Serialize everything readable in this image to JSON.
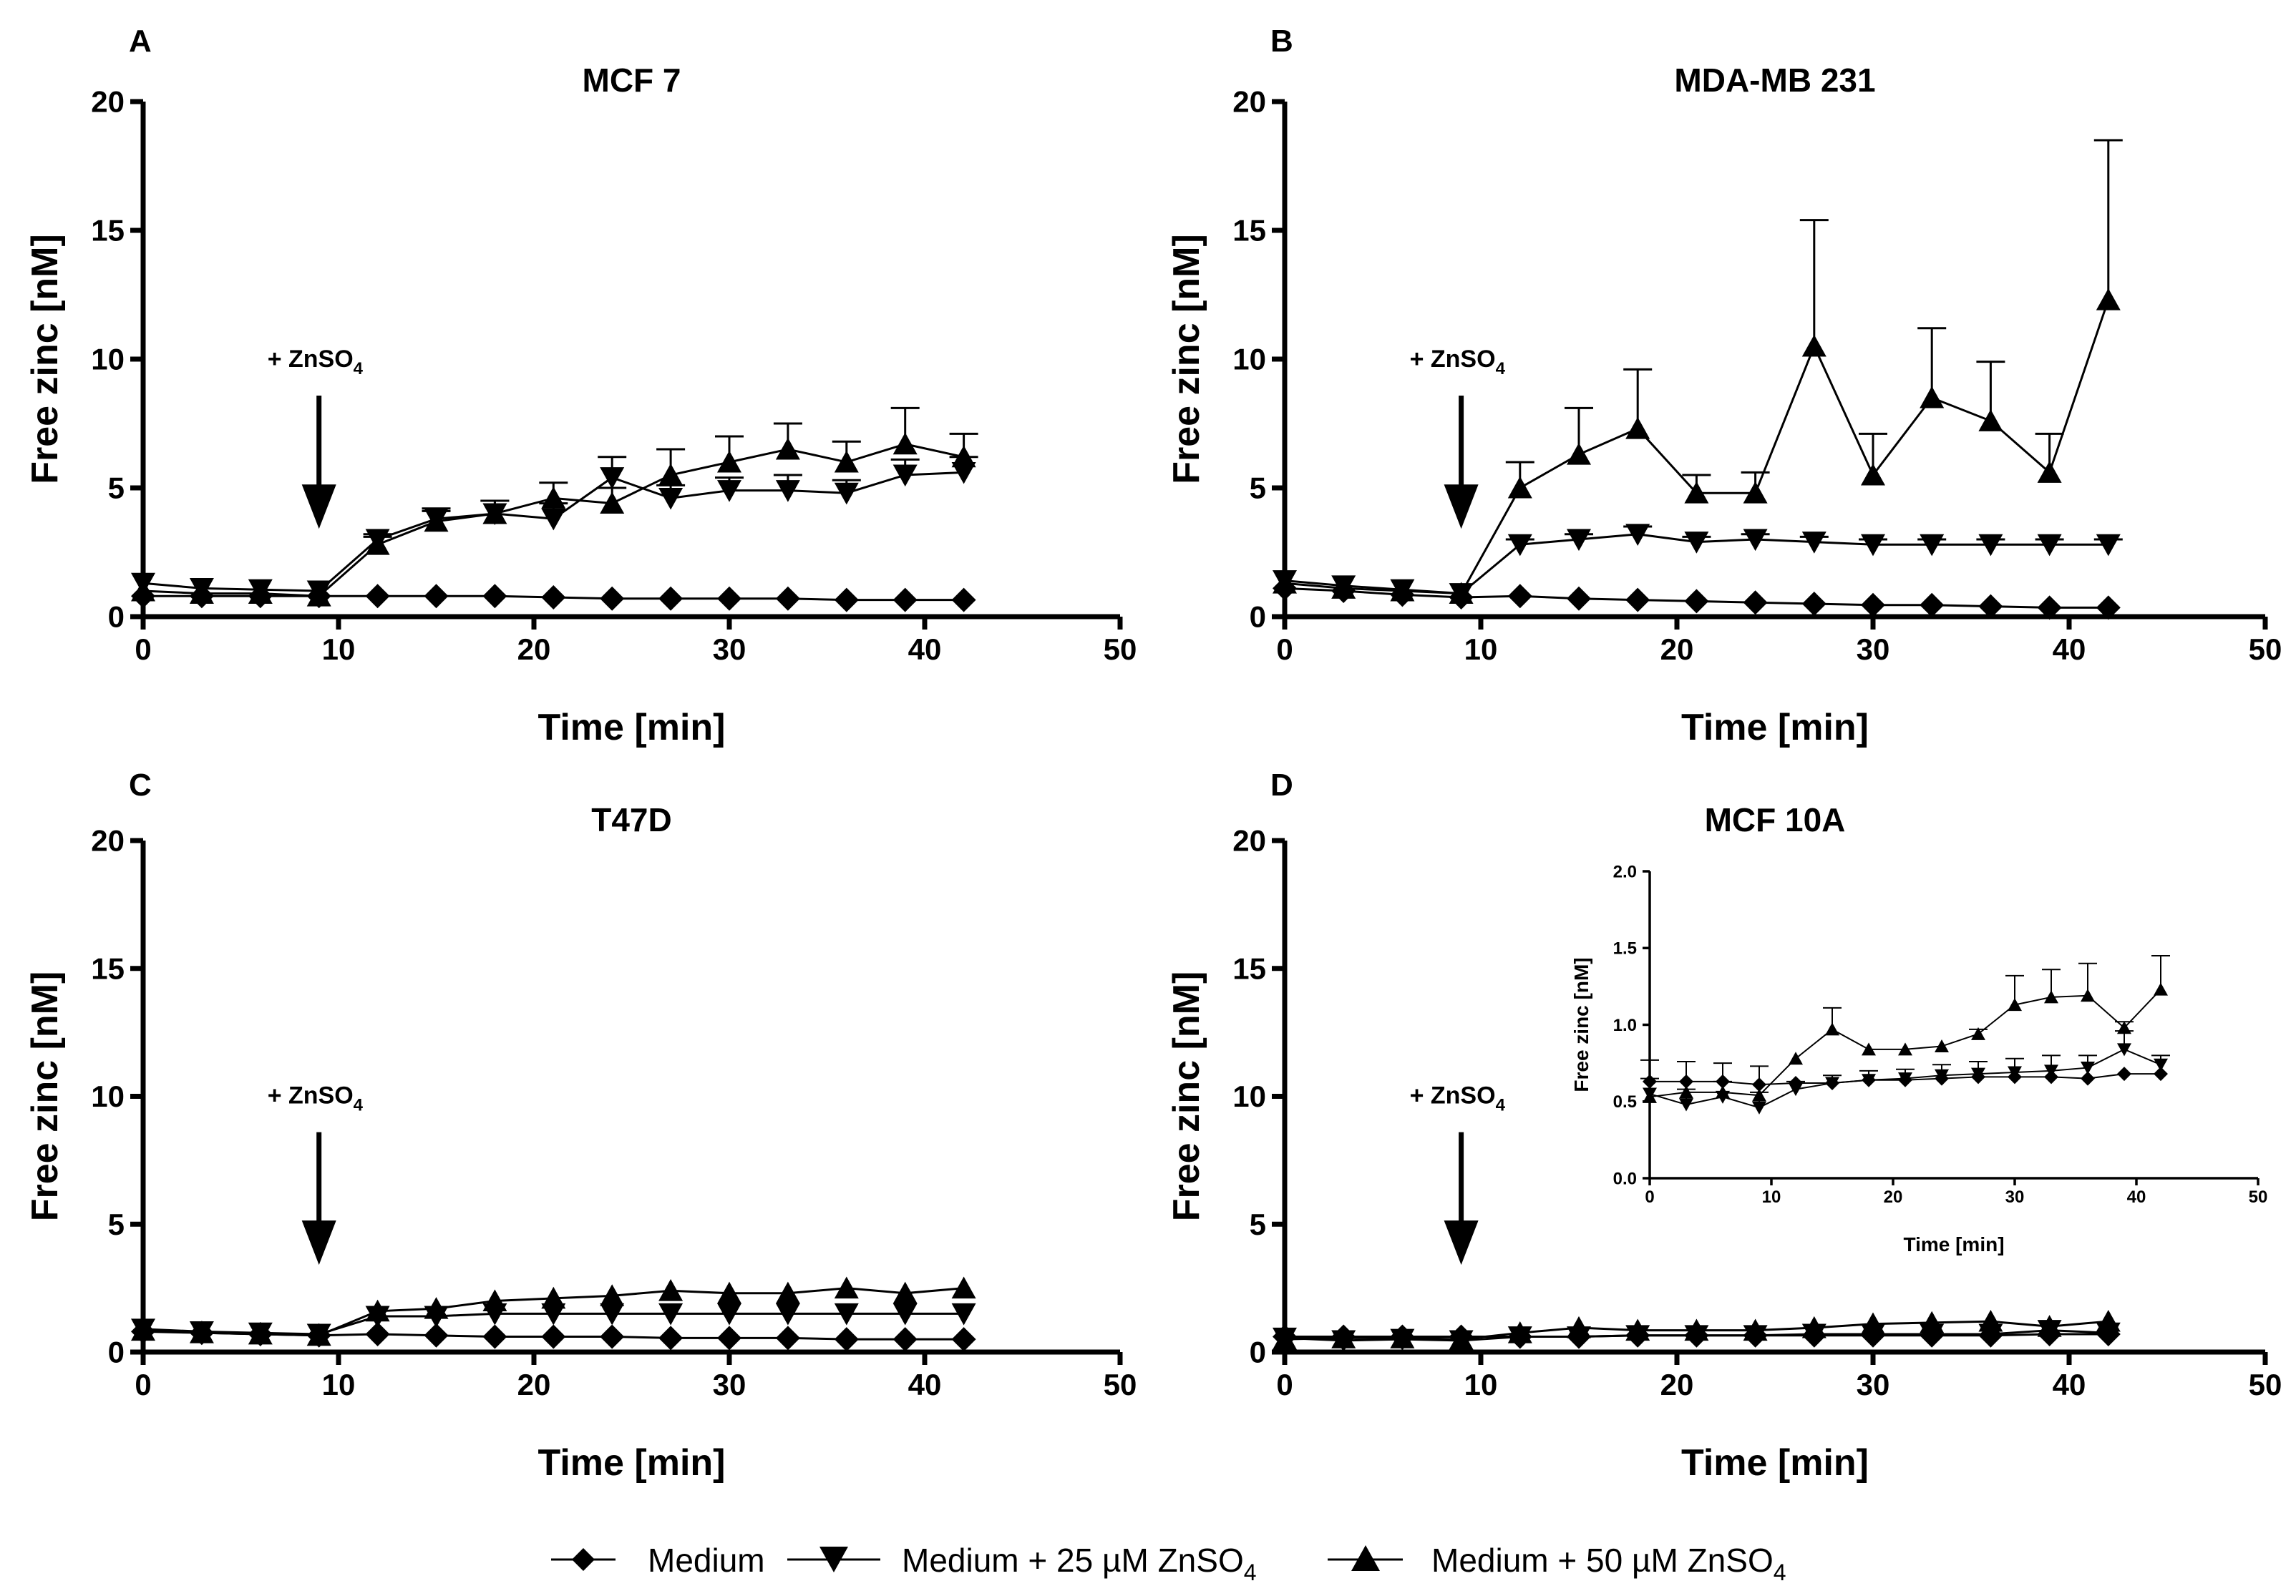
{
  "figure": {
    "annotation_text": "+ ZnSO",
    "annotation_sub": "4"
  },
  "legend": {
    "items": [
      {
        "label": "Medium",
        "sub": "",
        "marker": "diamond"
      },
      {
        "label": "Medium + 25 µM ZnSO",
        "sub": "4",
        "marker": "triangle-down"
      },
      {
        "label": "Medium + 50 µM ZnSO",
        "sub": "4",
        "marker": "triangle-up"
      }
    ]
  },
  "chart_data": [
    {
      "type": "line",
      "letter": "A",
      "title": "MCF 7",
      "xlabel": "Time [min]",
      "ylabel": "Free zinc [nM]",
      "xlim": [
        0,
        50
      ],
      "ylim": [
        0,
        20
      ],
      "xticks": [
        0,
        10,
        20,
        30,
        40,
        50
      ],
      "yticks": [
        0,
        5,
        10,
        15,
        20
      ],
      "x": [
        0,
        3,
        6,
        9,
        12,
        15,
        18,
        21,
        24,
        27,
        30,
        33,
        36,
        39,
        42
      ],
      "arrow_x": 9,
      "series": [
        {
          "name": "Medium",
          "marker": "diamond",
          "values": [
            0.8,
            0.8,
            0.8,
            0.8,
            0.8,
            0.8,
            0.8,
            0.75,
            0.7,
            0.7,
            0.7,
            0.7,
            0.65,
            0.65,
            0.65
          ],
          "errors": [
            0,
            0,
            0,
            0,
            0,
            0,
            0,
            0,
            0,
            0,
            0,
            0,
            0,
            0,
            0
          ]
        },
        {
          "name": "Medium + 25 µM ZnSO4",
          "marker": "triangle-down",
          "values": [
            1.3,
            1.1,
            1.05,
            1.0,
            3.0,
            3.8,
            4.0,
            3.8,
            5.4,
            4.6,
            4.9,
            4.9,
            4.8,
            5.5,
            5.6
          ],
          "errors": [
            0,
            0,
            0,
            0,
            0.2,
            0.4,
            0.5,
            0.6,
            0.8,
            0.5,
            0.5,
            0.6,
            0.5,
            0.6,
            0.6
          ]
        },
        {
          "name": "Medium + 50 µM ZnSO4",
          "marker": "triangle-up",
          "values": [
            1.0,
            0.9,
            0.9,
            0.8,
            2.8,
            3.7,
            4.0,
            4.6,
            4.4,
            5.5,
            6.0,
            6.5,
            6.0,
            6.7,
            6.2
          ],
          "errors": [
            0,
            0,
            0,
            0,
            0.3,
            0.4,
            0.5,
            0.6,
            0.6,
            1.0,
            1.0,
            1.0,
            0.8,
            1.4,
            0.9
          ]
        }
      ]
    },
    {
      "type": "line",
      "letter": "B",
      "title": "MDA-MB 231",
      "xlabel": "Time [min]",
      "ylabel": "Free zinc [nM]",
      "xlim": [
        0,
        50
      ],
      "ylim": [
        0,
        20
      ],
      "xticks": [
        0,
        10,
        20,
        30,
        40,
        50
      ],
      "yticks": [
        0,
        5,
        10,
        15,
        20
      ],
      "x": [
        0,
        3,
        6,
        9,
        12,
        15,
        18,
        21,
        24,
        27,
        30,
        33,
        36,
        39,
        42
      ],
      "arrow_x": 9,
      "series": [
        {
          "name": "Medium",
          "marker": "diamond",
          "values": [
            1.1,
            1.0,
            0.85,
            0.75,
            0.8,
            0.7,
            0.65,
            0.6,
            0.55,
            0.5,
            0.45,
            0.45,
            0.4,
            0.35,
            0.35
          ],
          "errors": [
            0,
            0,
            0,
            0,
            0,
            0,
            0,
            0,
            0,
            0,
            0,
            0,
            0,
            0,
            0
          ]
        },
        {
          "name": "Medium + 25 µM ZnSO4",
          "marker": "triangle-down",
          "values": [
            1.4,
            1.2,
            1.05,
            0.9,
            2.8,
            3.0,
            3.2,
            2.9,
            3.0,
            2.9,
            2.8,
            2.8,
            2.8,
            2.8,
            2.8
          ],
          "errors": [
            0,
            0,
            0,
            0,
            0.2,
            0.2,
            0.3,
            0.2,
            0.2,
            0.2,
            0.2,
            0.2,
            0.2,
            0.2,
            0.2
          ]
        },
        {
          "name": "Medium + 50 µM ZnSO4",
          "marker": "triangle-up",
          "values": [
            1.3,
            1.1,
            1.0,
            0.9,
            5.0,
            6.3,
            7.3,
            4.8,
            4.8,
            10.5,
            5.5,
            8.5,
            7.6,
            5.6,
            12.3
          ],
          "errors": [
            0,
            0,
            0,
            0,
            1.0,
            1.8,
            2.3,
            0.7,
            0.8,
            4.9,
            1.6,
            2.7,
            2.3,
            1.5,
            6.2
          ]
        }
      ]
    },
    {
      "type": "line",
      "letter": "C",
      "title": "T47D",
      "xlabel": "Time [min]",
      "ylabel": "Free zinc [nM]",
      "xlim": [
        0,
        50
      ],
      "ylim": [
        0,
        20
      ],
      "xticks": [
        0,
        10,
        20,
        30,
        40,
        50
      ],
      "yticks": [
        0,
        5,
        10,
        15,
        20
      ],
      "x": [
        0,
        3,
        6,
        9,
        12,
        15,
        18,
        21,
        24,
        27,
        30,
        33,
        36,
        39,
        42
      ],
      "arrow_x": 9,
      "series": [
        {
          "name": "Medium",
          "marker": "diamond",
          "values": [
            0.8,
            0.75,
            0.7,
            0.65,
            0.7,
            0.65,
            0.6,
            0.6,
            0.6,
            0.55,
            0.55,
            0.55,
            0.5,
            0.5,
            0.5
          ],
          "errors": [
            0,
            0,
            0,
            0,
            0,
            0,
            0,
            0,
            0,
            0,
            0,
            0,
            0,
            0,
            0
          ]
        },
        {
          "name": "Medium + 25 µM ZnSO4",
          "marker": "triangle-down",
          "values": [
            0.9,
            0.8,
            0.75,
            0.7,
            1.4,
            1.4,
            1.5,
            1.5,
            1.5,
            1.5,
            1.5,
            1.5,
            1.5,
            1.5,
            1.5
          ],
          "errors": [
            0,
            0,
            0,
            0,
            0,
            0,
            0,
            0,
            0,
            0,
            0,
            0,
            0,
            0,
            0
          ]
        },
        {
          "name": "Medium + 50 µM ZnSO4",
          "marker": "triangle-up",
          "values": [
            0.85,
            0.75,
            0.7,
            0.65,
            1.6,
            1.7,
            2.0,
            2.1,
            2.2,
            2.4,
            2.3,
            2.3,
            2.5,
            2.3,
            2.5
          ],
          "errors": [
            0,
            0,
            0,
            0,
            0,
            0,
            0,
            0,
            0,
            0,
            0,
            0,
            0,
            0,
            0
          ]
        }
      ]
    },
    {
      "type": "line",
      "letter": "D",
      "title": "MCF 10A",
      "xlabel": "Time [min]",
      "ylabel": "Free zinc [nM]",
      "xlim": [
        0,
        50
      ],
      "ylim": [
        0,
        20
      ],
      "xticks": [
        0,
        10,
        20,
        30,
        40,
        50
      ],
      "yticks": [
        0,
        5,
        10,
        15,
        20
      ],
      "x": [
        0,
        3,
        6,
        9,
        12,
        15,
        18,
        21,
        24,
        27,
        30,
        33,
        36,
        39,
        42
      ],
      "arrow_x": 9,
      "series": [
        {
          "name": "Medium",
          "marker": "diamond",
          "values": [
            0.6,
            0.6,
            0.6,
            0.6,
            0.6,
            0.6,
            0.65,
            0.65,
            0.65,
            0.65,
            0.65,
            0.65,
            0.65,
            0.7,
            0.7
          ],
          "errors": [
            0,
            0,
            0,
            0,
            0,
            0,
            0,
            0,
            0,
            0,
            0,
            0,
            0,
            0,
            0
          ]
        },
        {
          "name": "Medium + 25 µM ZnSO4",
          "marker": "triangle-down",
          "values": [
            0.55,
            0.45,
            0.5,
            0.45,
            0.6,
            0.6,
            0.65,
            0.65,
            0.65,
            0.7,
            0.7,
            0.7,
            0.7,
            0.85,
            0.75
          ],
          "errors": [
            0,
            0,
            0,
            0,
            0,
            0,
            0,
            0,
            0,
            0,
            0,
            0,
            0,
            0,
            0
          ]
        },
        {
          "name": "Medium + 50 µM ZnSO4",
          "marker": "triangle-up",
          "values": [
            0.5,
            0.55,
            0.55,
            0.5,
            0.75,
            0.95,
            0.85,
            0.85,
            0.85,
            0.95,
            1.1,
            1.15,
            1.2,
            1.0,
            1.2
          ],
          "errors": [
            0,
            0,
            0,
            0,
            0,
            0,
            0,
            0,
            0,
            0,
            0,
            0,
            0,
            0,
            0
          ]
        }
      ],
      "inset": {
        "type": "line",
        "xlabel": "Time [min]",
        "ylabel": "Free zinc [nM]",
        "xlim": [
          0,
          50
        ],
        "ylim": [
          0,
          2.0
        ],
        "xticks": [
          0,
          10,
          20,
          30,
          40,
          50
        ],
        "yticks": [
          0.0,
          0.5,
          1.0,
          1.5,
          2.0
        ],
        "ytick_labels": [
          "0.0",
          "0.5",
          "1.0",
          "1.5",
          "2.0"
        ],
        "x": [
          0,
          3,
          6,
          9,
          12,
          15,
          18,
          21,
          24,
          27,
          30,
          33,
          36,
          39,
          42
        ],
        "series": [
          {
            "name": "Medium",
            "marker": "diamond",
            "values": [
              0.63,
              0.63,
              0.63,
              0.61,
              0.62,
              0.62,
              0.64,
              0.64,
              0.65,
              0.66,
              0.66,
              0.66,
              0.65,
              0.68,
              0.68
            ],
            "errors": [
              0.14,
              0.13,
              0.12,
              0.12,
              0,
              0,
              0,
              0,
              0,
              0,
              0,
              0,
              0,
              0,
              0
            ]
          },
          {
            "name": "Medium + 25 µM ZnSO4",
            "marker": "triangle-down",
            "values": [
              0.55,
              0.48,
              0.53,
              0.46,
              0.58,
              0.62,
              0.64,
              0.65,
              0.67,
              0.68,
              0.69,
              0.7,
              0.72,
              0.84,
              0.74
            ],
            "errors": [
              0.1,
              0.1,
              0.1,
              0.1,
              0.05,
              0.05,
              0.06,
              0.06,
              0.07,
              0.08,
              0.09,
              0.1,
              0.08,
              0.12,
              0.06
            ]
          },
          {
            "name": "Medium + 50 µM ZnSO4",
            "marker": "triangle-up",
            "values": [
              0.53,
              0.56,
              0.56,
              0.54,
              0.78,
              0.97,
              0.84,
              0.84,
              0.86,
              0.94,
              1.13,
              1.18,
              1.19,
              0.98,
              1.23
            ],
            "errors": [
              0,
              0,
              0,
              0,
              0,
              0.14,
              0,
              0,
              0,
              0.03,
              0.19,
              0.18,
              0.21,
              0.04,
              0.22
            ]
          }
        ]
      }
    }
  ]
}
